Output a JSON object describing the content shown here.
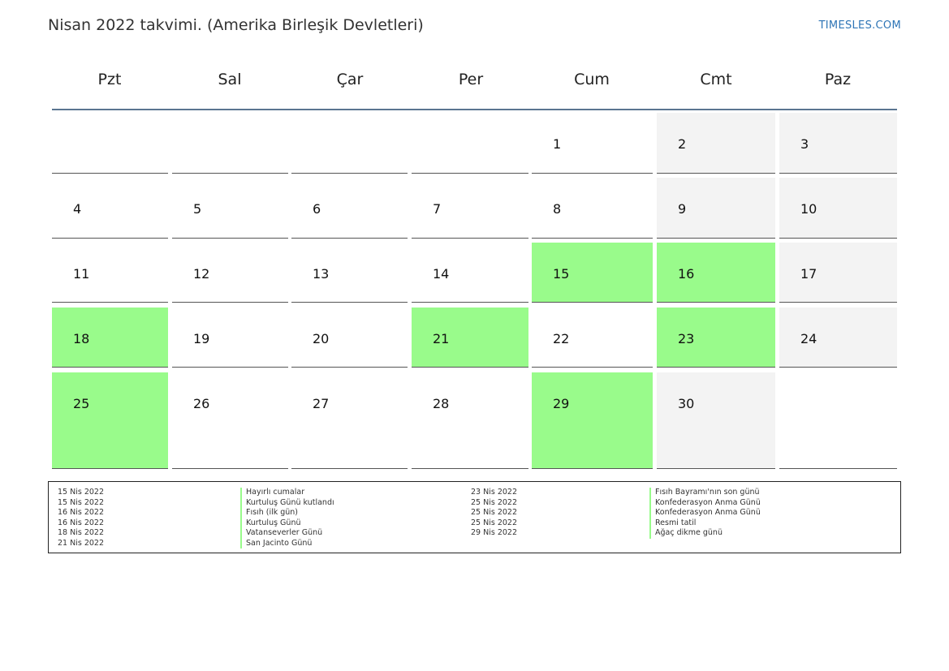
{
  "title": "Nisan 2022 takvimi. (Amerika Birleşik Devletleri)",
  "brand": "TIMESLES.COM",
  "colors": {
    "holiday": "#99fb8b",
    "weekend": "#f3f3f3",
    "header_rule": "#5a7591",
    "brand": "#2e75b6"
  },
  "weekdays": [
    "Pzt",
    "Sal",
    "Çar",
    "Per",
    "Cum",
    "Cmt",
    "Paz"
  ],
  "weeks": [
    [
      {
        "day": ""
      },
      {
        "day": ""
      },
      {
        "day": ""
      },
      {
        "day": ""
      },
      {
        "day": "1"
      },
      {
        "day": "2",
        "weekend": true
      },
      {
        "day": "3",
        "weekend": true
      }
    ],
    [
      {
        "day": "4"
      },
      {
        "day": "5"
      },
      {
        "day": "6"
      },
      {
        "day": "7"
      },
      {
        "day": "8"
      },
      {
        "day": "9",
        "weekend": true
      },
      {
        "day": "10",
        "weekend": true
      }
    ],
    [
      {
        "day": "11"
      },
      {
        "day": "12"
      },
      {
        "day": "13"
      },
      {
        "day": "14"
      },
      {
        "day": "15",
        "holiday": true
      },
      {
        "day": "16",
        "holiday": true
      },
      {
        "day": "17",
        "weekend": true
      }
    ],
    [
      {
        "day": "18",
        "holiday": true
      },
      {
        "day": "19"
      },
      {
        "day": "20"
      },
      {
        "day": "21",
        "holiday": true
      },
      {
        "day": "22"
      },
      {
        "day": "23",
        "holiday": true
      },
      {
        "day": "24",
        "weekend": true
      }
    ],
    [
      {
        "day": "25",
        "holiday": true
      },
      {
        "day": "26"
      },
      {
        "day": "27"
      },
      {
        "day": "28"
      },
      {
        "day": "29",
        "holiday": true
      },
      {
        "day": "30",
        "weekend": true
      },
      {
        "day": ""
      }
    ]
  ],
  "holidays_left": [
    {
      "date": "15 Nis 2022",
      "name": "Hayırlı cumalar"
    },
    {
      "date": "15 Nis 2022",
      "name": "Kurtuluş Günü kutlandı"
    },
    {
      "date": "16 Nis 2022",
      "name": "Fısıh (ilk gün)"
    },
    {
      "date": "16 Nis 2022",
      "name": "Kurtuluş Günü"
    },
    {
      "date": "18 Nis 2022",
      "name": "Vatanseverler Günü"
    },
    {
      "date": "21 Nis 2022",
      "name": "San Jacinto Günü"
    }
  ],
  "holidays_right": [
    {
      "date": "23 Nis 2022",
      "name": "Fısıh Bayramı'nın son günü"
    },
    {
      "date": "25 Nis 2022",
      "name": "Konfederasyon Anma Günü"
    },
    {
      "date": "25 Nis 2022",
      "name": "Konfederasyon Anma Günü"
    },
    {
      "date": "25 Nis 2022",
      "name": "Resmi tatil"
    },
    {
      "date": "29 Nis 2022",
      "name": "Ağaç dikme günü"
    }
  ]
}
